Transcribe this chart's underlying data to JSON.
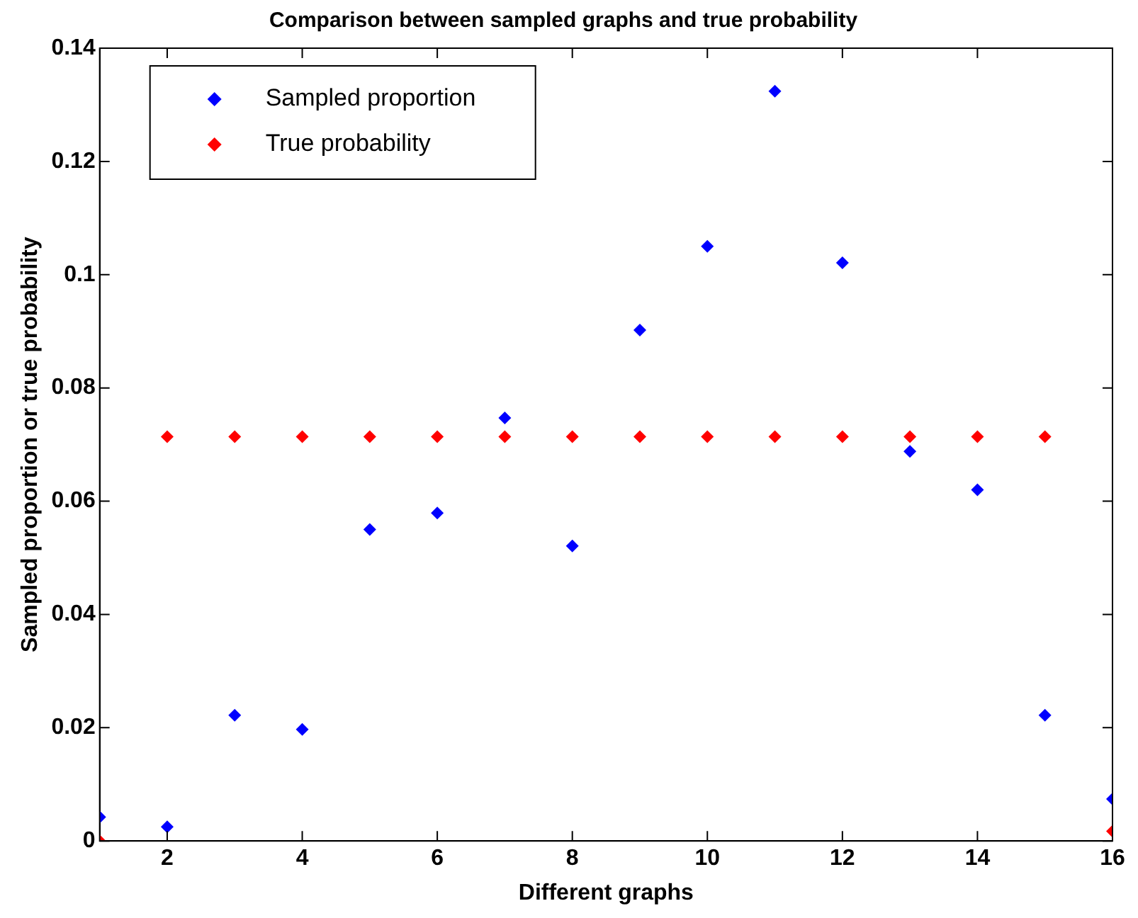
{
  "chart_data": {
    "type": "scatter",
    "title": "Comparison between sampled graphs and true probability",
    "xlabel": "Different graphs",
    "ylabel": "Sampled proportion or true probability",
    "x": [
      1,
      2,
      3,
      4,
      5,
      6,
      7,
      8,
      9,
      10,
      11,
      12,
      13,
      14,
      15,
      16
    ],
    "series": [
      {
        "name": "Sampled proportion",
        "color": "#0000ff",
        "values": [
          0.0042,
          0.0025,
          0.0222,
          0.0197,
          0.055,
          0.0579,
          0.0747,
          0.0521,
          0.0902,
          0.105,
          0.1324,
          0.1021,
          0.0688,
          0.062,
          0.0222,
          0.0074
        ]
      },
      {
        "name": "True probability",
        "color": "#ff0000",
        "values": [
          0,
          0.0714,
          0.0714,
          0.0714,
          0.0714,
          0.0714,
          0.0714,
          0.0714,
          0.0714,
          0.0714,
          0.0714,
          0.0714,
          0.0714,
          0.0714,
          0.0714,
          0.0017
        ]
      }
    ],
    "xlim": [
      1,
      16
    ],
    "xticks": [
      2,
      4,
      6,
      8,
      10,
      12,
      14,
      16
    ],
    "ylim": [
      0,
      0.14
    ],
    "yticks": [
      0,
      0.02,
      0.04,
      0.06,
      0.08,
      0.1,
      0.12,
      0.14
    ],
    "grid": false,
    "legend": "top left",
    "marker": "diamond"
  }
}
